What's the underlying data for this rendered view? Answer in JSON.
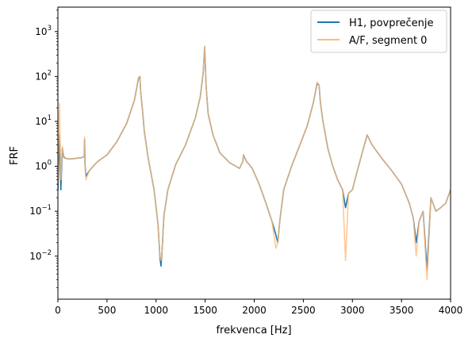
{
  "chart_data": {
    "type": "line",
    "title": "",
    "xlabel": "frekvenca [Hz]",
    "ylabel": "FRF",
    "xlim": [
      0,
      4000
    ],
    "ylim": [
      0.0011,
      3500
    ],
    "yscale": "log",
    "grid": false,
    "legend_position": "top-right",
    "x_ticks": [
      {
        "value": 0,
        "label": "0"
      },
      {
        "value": 500,
        "label": "500"
      },
      {
        "value": 1000,
        "label": "1000"
      },
      {
        "value": 1500,
        "label": "1500"
      },
      {
        "value": 2000,
        "label": "2000"
      },
      {
        "value": 2500,
        "label": "2500"
      },
      {
        "value": 3000,
        "label": "3000"
      },
      {
        "value": 3500,
        "label": "3500"
      },
      {
        "value": 4000,
        "label": "4000"
      }
    ],
    "y_ticks": [
      {
        "value": 0.01,
        "base": "10",
        "exp": "−2"
      },
      {
        "value": 0.1,
        "base": "10",
        "exp": "−1"
      },
      {
        "value": 1,
        "base": "10",
        "exp": "0"
      },
      {
        "value": 10,
        "base": "10",
        "exp": "1"
      },
      {
        "value": 100,
        "base": "10",
        "exp": "2"
      },
      {
        "value": 1000,
        "base": "10",
        "exp": "3"
      }
    ],
    "series": [
      {
        "name": "H1, povprečenje",
        "color": "#1f77b4",
        "x": [
          0,
          15,
          30,
          45,
          60,
          80,
          120,
          180,
          240,
          268,
          272,
          276,
          285,
          320,
          400,
          500,
          600,
          700,
          780,
          820,
          835,
          845,
          860,
          880,
          920,
          980,
          1020,
          1040,
          1050,
          1060,
          1080,
          1120,
          1200,
          1300,
          1400,
          1450,
          1480,
          1495,
          1510,
          1530,
          1580,
          1650,
          1750,
          1850,
          1885,
          1890,
          1920,
          1980,
          2050,
          2120,
          2180,
          2220,
          2240,
          2260,
          2300,
          2380,
          2460,
          2540,
          2600,
          2640,
          2660,
          2675,
          2700,
          2750,
          2800,
          2850,
          2900,
          2930,
          2960,
          3000,
          3050,
          3100,
          3150,
          3200,
          3300,
          3400,
          3500,
          3580,
          3620,
          3650,
          3680,
          3720,
          3760,
          3800,
          3850,
          3900,
          3950,
          4000
        ],
        "y": [
          0.3,
          5,
          0.3,
          2.5,
          1.6,
          1.5,
          1.45,
          1.5,
          1.55,
          1.65,
          4,
          1.1,
          0.6,
          0.8,
          1.25,
          1.8,
          3.5,
          9,
          30,
          90,
          100,
          40,
          20,
          6,
          1.5,
          0.3,
          0.05,
          0.009,
          0.006,
          0.012,
          0.08,
          0.3,
          1.1,
          3,
          12,
          35,
          120,
          450,
          60,
          15,
          5,
          2,
          1.2,
          0.9,
          1.3,
          1.8,
          1.3,
          0.9,
          0.4,
          0.15,
          0.06,
          0.03,
          0.02,
          0.06,
          0.3,
          1.0,
          2.8,
          8,
          25,
          70,
          65,
          25,
          10,
          2.5,
          1.0,
          0.5,
          0.3,
          0.12,
          0.25,
          0.3,
          0.8,
          2.0,
          5,
          3,
          1.5,
          0.8,
          0.4,
          0.15,
          0.07,
          0.02,
          0.06,
          0.1,
          0.005,
          0.2,
          0.1,
          0.12,
          0.15,
          0.3
        ]
      },
      {
        "name": "A/F, segment 0",
        "color": "#ffbb78",
        "x": [
          0,
          15,
          30,
          45,
          60,
          80,
          120,
          180,
          240,
          268,
          272,
          276,
          285,
          320,
          400,
          500,
          600,
          700,
          780,
          820,
          835,
          845,
          860,
          880,
          920,
          980,
          1020,
          1040,
          1050,
          1060,
          1080,
          1120,
          1200,
          1300,
          1400,
          1450,
          1480,
          1495,
          1510,
          1530,
          1580,
          1650,
          1750,
          1850,
          1885,
          1890,
          1920,
          1980,
          2050,
          2120,
          2180,
          2220,
          2240,
          2260,
          2300,
          2380,
          2460,
          2540,
          2600,
          2640,
          2660,
          2675,
          2700,
          2750,
          2800,
          2850,
          2900,
          2930,
          2960,
          3000,
          3050,
          3100,
          3150,
          3200,
          3300,
          3400,
          3500,
          3580,
          3620,
          3650,
          3680,
          3720,
          3760,
          3800,
          3850,
          3900,
          3950,
          4000
        ],
        "y": [
          0.4,
          25,
          0.5,
          2.8,
          1.7,
          1.5,
          1.45,
          1.5,
          1.55,
          1.65,
          4.5,
          1.0,
          0.5,
          0.8,
          1.25,
          1.8,
          3.5,
          9,
          30,
          95,
          100,
          40,
          20,
          6,
          1.5,
          0.3,
          0.05,
          0.01,
          0.008,
          0.012,
          0.08,
          0.3,
          1.1,
          3,
          12,
          35,
          120,
          480,
          60,
          15,
          5,
          2,
          1.2,
          0.9,
          1.3,
          1.8,
          1.3,
          0.9,
          0.4,
          0.15,
          0.06,
          0.015,
          0.02,
          0.06,
          0.3,
          1.0,
          2.8,
          8,
          25,
          75,
          65,
          25,
          10,
          2.5,
          1.0,
          0.5,
          0.3,
          0.008,
          0.25,
          0.3,
          0.8,
          2.0,
          5,
          3,
          1.5,
          0.8,
          0.4,
          0.15,
          0.07,
          0.01,
          0.06,
          0.1,
          0.003,
          0.2,
          0.1,
          0.12,
          0.15,
          0.3
        ]
      }
    ]
  }
}
